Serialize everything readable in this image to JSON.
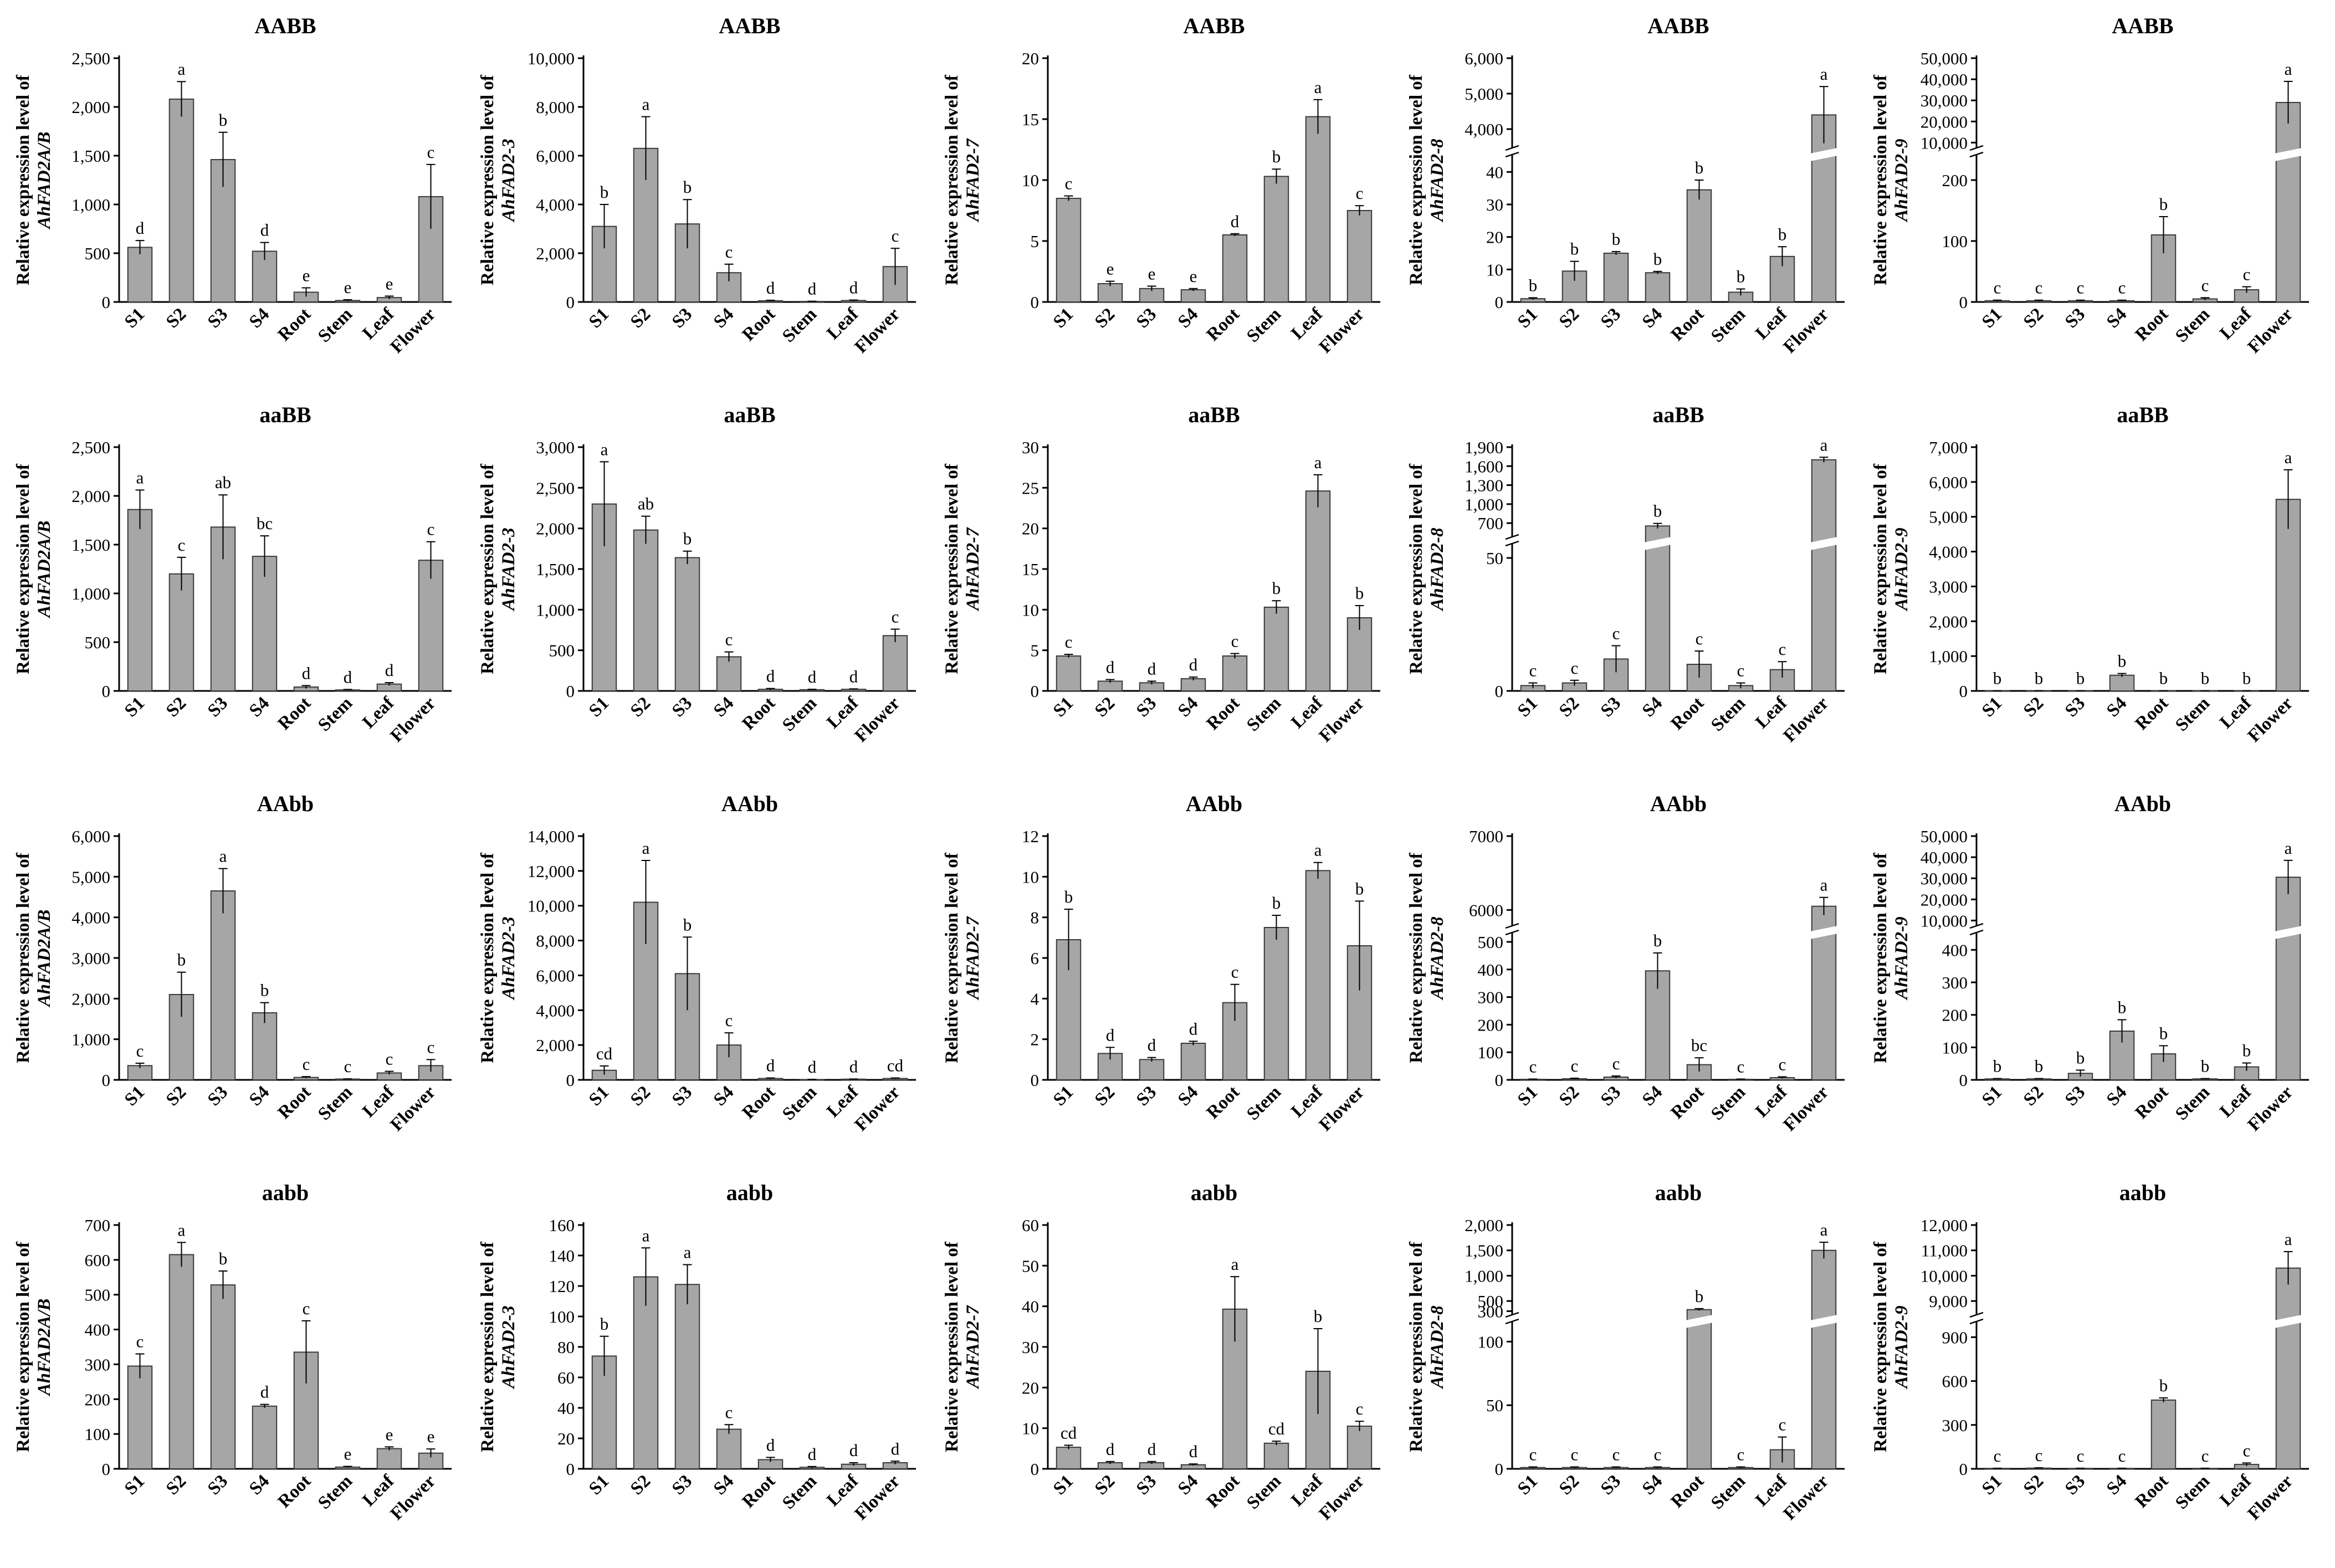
{
  "figure": {
    "ylabel_prefix": "Relative expression level of",
    "categories": [
      "S1",
      "S2",
      "S3",
      "S4",
      "Root",
      "Stem",
      "Leaf",
      "Flower"
    ]
  },
  "chart_data": [
    {
      "type": "bar",
      "row": 0,
      "col": 0,
      "title": "AABB",
      "gene": "AhFAD2A/B",
      "yticks": [
        "0",
        "500",
        "1,000",
        "1,500",
        "2,000",
        "2,500"
      ],
      "ylim": [
        0,
        2500
      ],
      "values": [
        560,
        2080,
        1460,
        520,
        100,
        15,
        45,
        1080
      ],
      "errors": [
        70,
        180,
        280,
        90,
        45,
        8,
        15,
        330
      ],
      "letters": [
        "d",
        "a",
        "b",
        "d",
        "e",
        "e",
        "e",
        "c"
      ]
    },
    {
      "type": "bar",
      "row": 0,
      "col": 1,
      "title": "AABB",
      "gene": "AhFAD2-3",
      "yticks": [
        "0",
        "2,000",
        "4,000",
        "6,000",
        "8,000",
        "10,000"
      ],
      "ylim": [
        0,
        10000
      ],
      "values": [
        3100,
        6300,
        3200,
        1200,
        50,
        20,
        60,
        1450
      ],
      "errors": [
        900,
        1300,
        1000,
        350,
        20,
        10,
        20,
        750
      ],
      "letters": [
        "b",
        "a",
        "b",
        "c",
        "d",
        "d",
        "d",
        "c"
      ]
    },
    {
      "type": "bar",
      "row": 0,
      "col": 2,
      "title": "AABB",
      "gene": "AhFAD2-7",
      "yticks": [
        "0",
        "5",
        "10",
        "15",
        "20"
      ],
      "ylim": [
        0,
        20
      ],
      "values": [
        8.5,
        1.5,
        1.1,
        1.0,
        5.5,
        10.3,
        15.2,
        7.5
      ],
      "errors": [
        0.2,
        0.2,
        0.2,
        0.1,
        0.1,
        0.6,
        1.4,
        0.4
      ],
      "letters": [
        "c",
        "e",
        "e",
        "e",
        "d",
        "b",
        "a",
        "c"
      ]
    },
    {
      "type": "bar",
      "row": 0,
      "col": 3,
      "title": "AABB",
      "gene": "AhFAD2-8",
      "yticks": [
        "0",
        "10",
        "20",
        "30",
        "40",
        "4,000",
        "5,000",
        "6,000"
      ],
      "ylim": [
        0,
        6000
      ],
      "break": {
        "low_max": 45,
        "high_min": 3500
      },
      "values": [
        1,
        9.5,
        15,
        9,
        34.5,
        3,
        14,
        4400
      ],
      "errors": [
        0.3,
        3,
        0.5,
        0.4,
        3,
        1,
        3,
        800
      ],
      "letters": [
        "b",
        "b",
        "b",
        "b",
        "b",
        "b",
        "b",
        "a"
      ]
    },
    {
      "type": "bar",
      "row": 0,
      "col": 4,
      "title": "AABB",
      "gene": "AhFAD2-9",
      "yticks": [
        "0",
        "100",
        "200",
        "10,000",
        "20,000",
        "30,000",
        "40,000",
        "50,000"
      ],
      "ylim": [
        0,
        50000
      ],
      "break": {
        "low_max": 240,
        "high_min": 8000
      },
      "values": [
        2,
        2,
        2,
        2,
        110,
        5,
        20,
        29000
      ],
      "errors": [
        1,
        1,
        1,
        1,
        30,
        2,
        5,
        10000
      ],
      "letters": [
        "c",
        "c",
        "c",
        "c",
        "b",
        "c",
        "c",
        "a"
      ]
    },
    {
      "type": "bar",
      "row": 1,
      "col": 0,
      "title": "aaBB",
      "gene": "AhFAD2A/B",
      "yticks": [
        "0",
        "500",
        "1,000",
        "1,500",
        "2,000",
        "2,500"
      ],
      "ylim": [
        0,
        2500
      ],
      "values": [
        1860,
        1200,
        1680,
        1380,
        40,
        10,
        70,
        1340
      ],
      "errors": [
        200,
        170,
        330,
        210,
        15,
        5,
        15,
        190
      ],
      "letters": [
        "a",
        "c",
        "ab",
        "bc",
        "d",
        "d",
        "d",
        "c"
      ]
    },
    {
      "type": "bar",
      "row": 1,
      "col": 1,
      "title": "aaBB",
      "gene": "AhFAD2-3",
      "yticks": [
        "0",
        "500",
        "1,000",
        "1,500",
        "2,000",
        "2,500",
        "3,000"
      ],
      "ylim": [
        0,
        3000
      ],
      "values": [
        2300,
        1980,
        1640,
        420,
        20,
        15,
        20,
        680
      ],
      "errors": [
        520,
        170,
        80,
        60,
        10,
        5,
        5,
        80
      ],
      "letters": [
        "a",
        "ab",
        "b",
        "c",
        "d",
        "d",
        "d",
        "c"
      ]
    },
    {
      "type": "bar",
      "row": 1,
      "col": 2,
      "title": "aaBB",
      "gene": "AhFAD2-7",
      "yticks": [
        "0",
        "5",
        "10",
        "15",
        "20",
        "25",
        "30"
      ],
      "ylim": [
        0,
        30
      ],
      "values": [
        4.3,
        1.2,
        1.0,
        1.5,
        4.3,
        10.3,
        24.6,
        9.0
      ],
      "errors": [
        0.2,
        0.2,
        0.2,
        0.2,
        0.3,
        0.8,
        2.0,
        1.5
      ],
      "letters": [
        "c",
        "d",
        "d",
        "d",
        "c",
        "b",
        "a",
        "b"
      ]
    },
    {
      "type": "bar",
      "row": 1,
      "col": 3,
      "title": "aaBB",
      "gene": "AhFAD2-8",
      "yticks": [
        "0",
        "50",
        "700",
        "1,000",
        "1,300",
        "1,600",
        "1,900"
      ],
      "ylim": [
        0,
        1900
      ],
      "break": {
        "low_max": 55,
        "high_min": 500
      },
      "values": [
        2,
        3,
        12,
        655,
        10,
        2,
        8,
        1700
      ],
      "errors": [
        1,
        1,
        5,
        40,
        5,
        1,
        3,
        40
      ],
      "letters": [
        "c",
        "c",
        "c",
        "b",
        "c",
        "c",
        "c",
        "a"
      ]
    },
    {
      "type": "bar",
      "row": 1,
      "col": 4,
      "title": "aaBB",
      "gene": "AhFAD2-9",
      "yticks": [
        "0",
        "1,000",
        "2,000",
        "3,000",
        "4,000",
        "5,000",
        "6,000",
        "7,000"
      ],
      "ylim": [
        0,
        7000
      ],
      "values": [
        5,
        5,
        5,
        450,
        5,
        5,
        5,
        5500
      ],
      "errors": [
        2,
        2,
        2,
        50,
        2,
        2,
        2,
        850
      ],
      "letters": [
        "b",
        "b",
        "b",
        "b",
        "b",
        "b",
        "b",
        "a"
      ]
    },
    {
      "type": "bar",
      "row": 2,
      "col": 0,
      "title": "AAbb",
      "gene": "AhFAD2A/B",
      "yticks": [
        "0",
        "1,000",
        "2,000",
        "3,000",
        "4,000",
        "5,000",
        "6,000"
      ],
      "ylim": [
        0,
        6000
      ],
      "values": [
        350,
        2100,
        4650,
        1650,
        60,
        20,
        170,
        350
      ],
      "errors": [
        60,
        550,
        550,
        250,
        20,
        5,
        40,
        150
      ],
      "letters": [
        "c",
        "b",
        "a",
        "b",
        "c",
        "c",
        "c",
        "c"
      ]
    },
    {
      "type": "bar",
      "row": 2,
      "col": 1,
      "title": "AAbb",
      "gene": "AhFAD2-3",
      "yticks": [
        "0",
        "2,000",
        "4,000",
        "6,000",
        "8,000",
        "10,000",
        "12,000",
        "14,000"
      ],
      "ylim": [
        0,
        14000
      ],
      "values": [
        550,
        10200,
        6100,
        2000,
        80,
        20,
        40,
        80
      ],
      "errors": [
        250,
        2400,
        2100,
        700,
        30,
        10,
        10,
        30
      ],
      "letters": [
        "cd",
        "a",
        "b",
        "c",
        "d",
        "d",
        "d",
        "cd"
      ]
    },
    {
      "type": "bar",
      "row": 2,
      "col": 2,
      "title": "AAbb",
      "gene": "AhFAD2-7",
      "yticks": [
        "0",
        "2",
        "4",
        "6",
        "8",
        "10",
        "12"
      ],
      "ylim": [
        0,
        12
      ],
      "values": [
        6.9,
        1.3,
        1.0,
        1.8,
        3.8,
        7.5,
        10.3,
        6.6
      ],
      "errors": [
        1.5,
        0.3,
        0.1,
        0.1,
        0.9,
        0.6,
        0.4,
        2.2
      ],
      "letters": [
        "b",
        "d",
        "d",
        "d",
        "c",
        "b",
        "a",
        "b"
      ]
    },
    {
      "type": "bar",
      "row": 2,
      "col": 3,
      "title": "AAbb",
      "gene": "AhFAD2-8",
      "yticks": [
        "0",
        "100",
        "200",
        "300",
        "400",
        "500",
        "6000",
        "7000"
      ],
      "ylim": [
        0,
        7000
      ],
      "break": {
        "low_max": 530,
        "high_min": 5800
      },
      "values": [
        2,
        4,
        10,
        395,
        55,
        2,
        8,
        6050
      ],
      "errors": [
        1,
        2,
        4,
        65,
        25,
        1,
        3,
        120
      ],
      "letters": [
        "c",
        "c",
        "c",
        "b",
        "bc",
        "c",
        "c",
        "a"
      ]
    },
    {
      "type": "bar",
      "row": 2,
      "col": 4,
      "title": "AAbb",
      "gene": "AhFAD2-9",
      "yticks": [
        "0",
        "100",
        "200",
        "300",
        "400",
        "10,000",
        "20,000",
        "30,000",
        "40,000",
        "50,000"
      ],
      "ylim": [
        0,
        50000
      ],
      "break": {
        "low_max": 450,
        "high_min": 8000
      },
      "values": [
        3,
        3,
        20,
        150,
        80,
        3,
        40,
        30500
      ],
      "errors": [
        1,
        1,
        10,
        35,
        25,
        1,
        12,
        8000
      ],
      "letters": [
        "b",
        "b",
        "b",
        "b",
        "b",
        "b",
        "b",
        "a"
      ]
    },
    {
      "type": "bar",
      "row": 3,
      "col": 0,
      "title": "aabb",
      "gene": "AhFAD2A/B",
      "yticks": [
        "0",
        "100",
        "200",
        "300",
        "400",
        "500",
        "600",
        "700"
      ],
      "ylim": [
        0,
        700
      ],
      "values": [
        295,
        615,
        528,
        180,
        335,
        5,
        58,
        45
      ],
      "errors": [
        35,
        35,
        40,
        5,
        90,
        2,
        5,
        12
      ],
      "letters": [
        "c",
        "a",
        "b",
        "d",
        "c",
        "e",
        "e",
        "e"
      ]
    },
    {
      "type": "bar",
      "row": 3,
      "col": 1,
      "title": "aabb",
      "gene": "AhFAD2-3",
      "yticks": [
        "0",
        "20",
        "40",
        "60",
        "80",
        "100",
        "120",
        "140",
        "160"
      ],
      "ylim": [
        0,
        160
      ],
      "values": [
        74,
        126,
        121,
        26,
        6,
        1,
        3,
        4
      ],
      "errors": [
        13,
        19,
        13,
        3,
        1.5,
        0.5,
        1,
        1
      ],
      "letters": [
        "b",
        "a",
        "a",
        "c",
        "d",
        "d",
        "d",
        "d"
      ]
    },
    {
      "type": "bar",
      "row": 3,
      "col": 2,
      "title": "aabb",
      "gene": "AhFAD2-7",
      "yticks": [
        "0",
        "10",
        "20",
        "30",
        "40",
        "50",
        "60"
      ],
      "ylim": [
        0,
        60
      ],
      "values": [
        5.3,
        1.5,
        1.5,
        1.0,
        39.3,
        6.3,
        24.0,
        10.5
      ],
      "errors": [
        0.5,
        0.3,
        0.3,
        0.2,
        8.0,
        0.5,
        10.5,
        1.2
      ],
      "letters": [
        "cd",
        "d",
        "d",
        "d",
        "a",
        "cd",
        "b",
        "c"
      ]
    },
    {
      "type": "bar",
      "row": 3,
      "col": 3,
      "title": "aabb",
      "gene": "AhFAD2-8",
      "yticks": [
        "0",
        "50",
        "100",
        "300",
        "500",
        "1,000",
        "1,500",
        "2,000"
      ],
      "ylim": [
        0,
        2000
      ],
      "break": {
        "low_max": 115,
        "high_min": 250
      },
      "values": [
        1,
        1,
        1,
        1,
        330,
        1,
        15,
        1500
      ],
      "errors": [
        0.5,
        0.5,
        0.5,
        0.5,
        20,
        0.5,
        10,
        160
      ],
      "letters": [
        "c",
        "c",
        "c",
        "c",
        "b",
        "c",
        "c",
        "a"
      ]
    },
    {
      "type": "bar",
      "row": 3,
      "col": 4,
      "title": "aabb",
      "gene": "AhFAD2-9",
      "yticks": [
        "0",
        "300",
        "600",
        "900",
        "9,000",
        "10,000",
        "11,000",
        "12,000"
      ],
      "ylim": [
        0,
        12000
      ],
      "break": {
        "low_max": 1000,
        "high_min": 8500
      },
      "values": [
        3,
        5,
        3,
        3,
        470,
        3,
        30,
        10300
      ],
      "errors": [
        1,
        2,
        1,
        1,
        15,
        1,
        10,
        650
      ],
      "letters": [
        "c",
        "c",
        "c",
        "c",
        "b",
        "c",
        "c",
        "a"
      ]
    }
  ]
}
